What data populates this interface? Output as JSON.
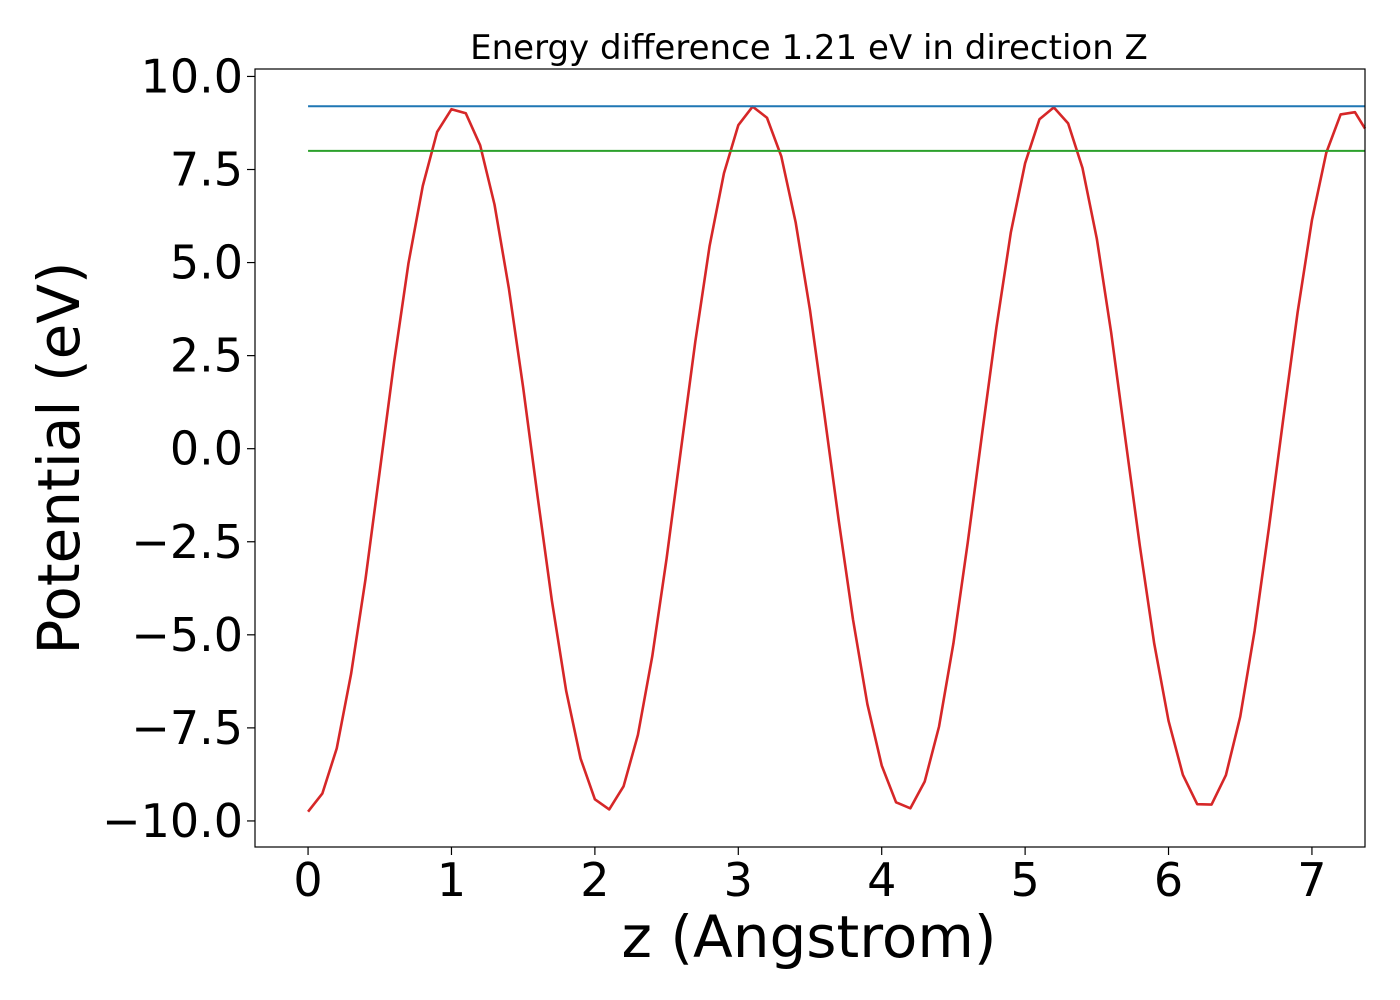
{
  "chart_data": {
    "type": "line",
    "title": "Energy difference 1.21 eV in direction Z",
    "xlabel": "z (Angstrom)",
    "ylabel": "Potential (eV)",
    "xlim": [
      -0.37,
      7.37
    ],
    "ylim": [
      -10.7,
      10.2
    ],
    "xticks": [
      0,
      1,
      2,
      3,
      4,
      5,
      6,
      7
    ],
    "xtick_labels": [
      "0",
      "1",
      "2",
      "3",
      "4",
      "5",
      "6",
      "7"
    ],
    "yticks": [
      10.0,
      7.5,
      5.0,
      2.5,
      0.0,
      -2.5,
      -5.0,
      -7.5,
      -10.0
    ],
    "ytick_labels": [
      "10.0",
      "7.5",
      "5.0",
      "2.5",
      "0.0",
      "−2.5",
      "−5.0",
      "−7.5",
      "−10.0"
    ],
    "grid": false,
    "series": [
      {
        "color": "#d62728",
        "x": [
          0.0,
          0.1,
          0.2,
          0.3,
          0.4,
          0.5,
          0.6,
          0.7,
          0.8,
          0.9,
          1.0,
          1.1,
          1.2,
          1.3,
          1.4,
          1.5,
          1.6,
          1.7,
          1.8,
          1.9,
          2.0,
          2.1,
          2.2,
          2.3,
          2.4,
          2.5,
          2.6,
          2.7,
          2.8,
          2.9,
          3.0,
          3.1,
          3.2,
          3.3,
          3.4,
          3.5,
          3.6,
          3.7,
          3.8,
          3.9,
          4.0,
          4.1,
          4.2,
          4.3,
          4.4,
          4.5,
          4.6,
          4.7,
          4.8,
          4.9,
          5.0,
          5.1,
          5.2,
          5.3,
          5.4,
          5.5,
          5.6,
          5.7,
          5.8,
          5.9,
          6.0,
          6.1,
          6.2,
          6.3,
          6.4,
          6.5,
          6.6,
          6.7,
          6.8,
          6.9,
          7.0,
          7.1,
          7.2,
          7.3,
          7.37
        ],
        "y": [
          -9.75,
          -9.26,
          -8.05,
          -6.05,
          -3.52,
          -0.6,
          2.33,
          4.98,
          7.06,
          8.51,
          9.12,
          9.01,
          8.15,
          6.56,
          4.31,
          1.64,
          -1.27,
          -4.08,
          -6.51,
          -8.32,
          -9.42,
          -9.69,
          -9.07,
          -7.69,
          -5.58,
          -2.95,
          -0.03,
          2.87,
          5.45,
          7.4,
          8.69,
          9.19,
          8.89,
          7.85,
          6.08,
          3.72,
          0.93,
          -1.92,
          -4.59,
          -6.86,
          -8.51,
          -9.5,
          -9.66,
          -8.94,
          -7.46,
          -5.23,
          -2.52,
          0.4,
          3.26,
          5.8,
          7.67,
          8.85,
          9.17,
          8.74,
          7.54,
          5.64,
          3.12,
          0.24,
          -2.61,
          -5.23,
          -7.31,
          -8.76,
          -9.55,
          -9.56,
          -8.77,
          -7.2,
          -4.9,
          -2.13,
          0.8,
          3.66,
          6.14,
          7.95,
          8.98,
          9.04,
          8.6
        ]
      },
      {
        "color": "#1f77b4",
        "x": [
          0.0,
          7.37
        ],
        "y": [
          9.2,
          9.2
        ]
      },
      {
        "color": "#2ca02c",
        "x": [
          0.0,
          7.37
        ],
        "y": [
          8.0,
          8.0
        ]
      }
    ]
  }
}
